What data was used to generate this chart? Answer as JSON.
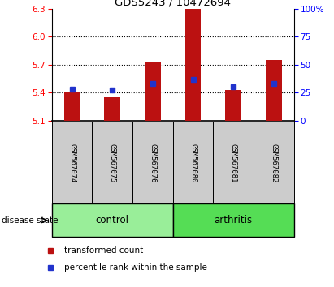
{
  "title": "GDS5243 / 10472694",
  "samples": [
    "GSM567074",
    "GSM567075",
    "GSM567076",
    "GSM567080",
    "GSM567081",
    "GSM567082"
  ],
  "bar_base": 5.1,
  "transformed_counts": [
    5.4,
    5.35,
    5.72,
    6.3,
    5.43,
    5.75
  ],
  "percentile_ranks": [
    28,
    27,
    33,
    37,
    30,
    33
  ],
  "ylim_left": [
    5.1,
    6.3
  ],
  "ylim_right": [
    0,
    100
  ],
  "yticks_left": [
    5.1,
    5.4,
    5.7,
    6.0,
    6.3
  ],
  "yticks_right": [
    0,
    25,
    50,
    75,
    100
  ],
  "bar_color": "#bb1111",
  "dot_color": "#2233cc",
  "control_color": "#99ee99",
  "arthritis_color": "#55dd55",
  "label_bg_color": "#cccccc",
  "disease_state_label": "disease state",
  "control_label": "control",
  "arthritis_label": "arthritis",
  "legend_bar_label": "transformed count",
  "legend_dot_label": "percentile rank within the sample"
}
